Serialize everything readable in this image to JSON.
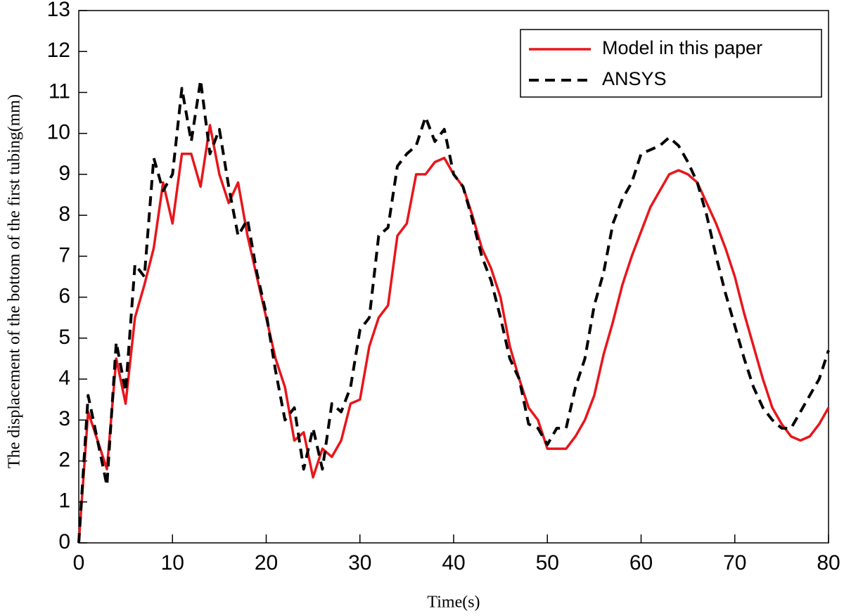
{
  "chart_data": {
    "type": "line",
    "x_label": "Time(s)",
    "y_label": "The displacement of the bottom of the first tubing(mm)",
    "x": [
      0,
      1,
      2,
      3,
      4,
      5,
      6,
      7,
      8,
      9,
      10,
      11,
      12,
      13,
      14,
      15,
      16,
      17,
      18,
      19,
      20,
      21,
      22,
      23,
      24,
      25,
      26,
      27,
      28,
      29,
      30,
      31,
      32,
      33,
      34,
      35,
      36,
      37,
      38,
      39,
      40,
      41,
      42,
      43,
      44,
      45,
      46,
      47,
      48,
      49,
      50,
      51,
      52,
      53,
      54,
      55,
      56,
      57,
      58,
      59,
      60,
      61,
      62,
      63,
      64,
      65,
      66,
      67,
      68,
      69,
      70,
      71,
      72,
      73,
      74,
      75,
      76,
      77,
      78,
      79,
      80
    ],
    "series": [
      {
        "name": "Model in this paper",
        "color": "#e8161b",
        "dash": false,
        "values": [
          0,
          3.2,
          2.5,
          1.8,
          4.5,
          3.4,
          5.5,
          6.3,
          7.2,
          8.8,
          7.8,
          9.5,
          9.5,
          8.7,
          10.2,
          9.0,
          8.3,
          8.8,
          7.5,
          6.5,
          5.5,
          4.5,
          3.8,
          2.5,
          2.7,
          1.6,
          2.3,
          2.1,
          2.5,
          3.4,
          3.5,
          4.8,
          5.5,
          5.8,
          7.5,
          7.8,
          9.0,
          9.0,
          9.3,
          9.4,
          9.0,
          8.7,
          8.0,
          7.2,
          6.7,
          6.0,
          4.8,
          4.0,
          3.3,
          3.0,
          2.3,
          2.3,
          2.3,
          2.6,
          3.0,
          3.6,
          4.6,
          5.4,
          6.3,
          7.0,
          7.6,
          8.2,
          8.6,
          9.0,
          9.1,
          9.0,
          8.8,
          8.3,
          7.8,
          7.2,
          6.5,
          5.6,
          4.8,
          4.0,
          3.3,
          2.9,
          2.6,
          2.5,
          2.6,
          2.9,
          3.3
        ]
      },
      {
        "name": "ANSYS",
        "color": "#000000",
        "dash": true,
        "values": [
          0,
          3.6,
          2.5,
          1.4,
          4.9,
          3.7,
          6.8,
          6.5,
          9.4,
          8.6,
          9.0,
          11.1,
          9.8,
          11.3,
          9.5,
          10.1,
          8.7,
          7.5,
          7.9,
          6.6,
          5.6,
          4.2,
          3.0,
          3.3,
          1.8,
          2.8,
          1.8,
          3.4,
          3.2,
          3.8,
          5.2,
          5.5,
          7.5,
          7.7,
          9.2,
          9.5,
          9.7,
          10.4,
          9.8,
          10.1,
          9.0,
          8.7,
          7.9,
          7.0,
          6.4,
          5.5,
          4.5,
          4.0,
          2.9,
          2.8,
          2.4,
          2.8,
          2.8,
          3.8,
          4.5,
          5.8,
          6.6,
          7.8,
          8.4,
          8.8,
          9.5,
          9.6,
          9.7,
          9.9,
          9.7,
          9.3,
          8.8,
          8.0,
          7.0,
          6.1,
          5.3,
          4.5,
          3.8,
          3.3,
          3.0,
          2.8,
          2.8,
          3.2,
          3.6,
          4.0,
          4.7
        ]
      }
    ],
    "xlim": [
      0,
      80
    ],
    "xticks": [
      0,
      10,
      20,
      30,
      40,
      50,
      60,
      70,
      80
    ],
    "ylim": [
      0,
      13
    ],
    "yticks": [
      0,
      1,
      2,
      3,
      4,
      5,
      6,
      7,
      8,
      9,
      10,
      11,
      12,
      13
    ],
    "grid": false,
    "legend": "upper right"
  }
}
